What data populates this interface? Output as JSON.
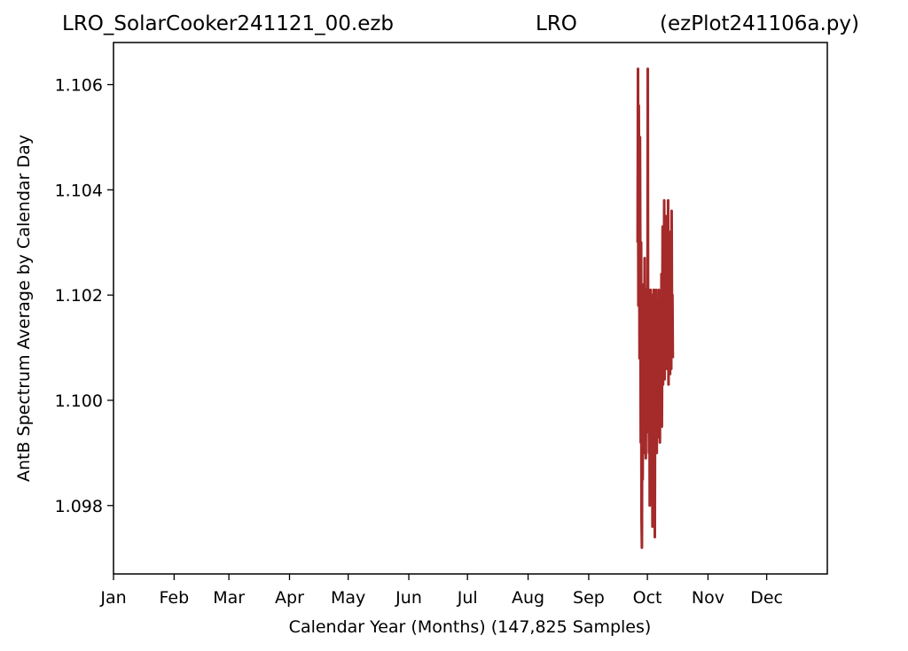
{
  "header": {
    "title_left": "LRO_SolarCooker241121_00.ezb",
    "title_mid": "LRO",
    "title_right": "(ezPlot241106a.py)"
  },
  "chart_data": {
    "type": "line",
    "xlabel": "Calendar Year (Months) (147,825 Samples)",
    "ylabel": "AntB Spectrum Average by Calendar Day",
    "x_ticks": [
      "Jan",
      "Feb",
      "Mar",
      "Apr",
      "May",
      "Jun",
      "Jul",
      "Aug",
      "Sep",
      "Oct",
      "Nov",
      "Dec"
    ],
    "y_ticks": [
      "1.098",
      "1.100",
      "1.102",
      "1.104",
      "1.106"
    ],
    "xlim": [
      1,
      366
    ],
    "ylim": [
      1.0967,
      1.1068
    ],
    "grid": false,
    "colors": {
      "series": "#a52a2a"
    },
    "series": [
      {
        "x": [
          269.0,
          269.2,
          269.4,
          269.6,
          269.8,
          270.0,
          270.2,
          270.4,
          270.6,
          270.8,
          271.0,
          271.2,
          271.4,
          271.6,
          271.8,
          272.0,
          272.2,
          272.4,
          272.6,
          272.8,
          273.0,
          273.2,
          273.4,
          273.6,
          273.8,
          274.0,
          274.2,
          274.4,
          274.6,
          274.8,
          275.0,
          275.2,
          275.4,
          275.6,
          275.8,
          276.0,
          276.2,
          276.4,
          276.6,
          276.8,
          277.0,
          277.2,
          277.4,
          277.6,
          277.8,
          278.0,
          278.2,
          278.4,
          278.6,
          278.8,
          279.0,
          279.2,
          279.4,
          279.6,
          279.8,
          280.0,
          280.2,
          280.4,
          280.6,
          280.8,
          281.0,
          281.2,
          281.4,
          281.6,
          281.8,
          282.0,
          282.2,
          282.4,
          282.6,
          282.8,
          283.0,
          283.2,
          283.4,
          283.6,
          283.8,
          284.0,
          284.2,
          284.4,
          284.6,
          284.8,
          285.0,
          285.2,
          285.4,
          285.6,
          285.8,
          286.0,
          286.2,
          286.4,
          286.6,
          286.8,
          287.0
        ],
        "y": [
          1.103,
          1.1063,
          1.1018,
          1.1056,
          1.1035,
          1.1008,
          1.105,
          1.1024,
          1.0992,
          1.103,
          1.0978,
          1.0972,
          1.1005,
          1.0985,
          1.1015,
          1.1022,
          1.099,
          1.1,
          1.1027,
          1.0996,
          1.1012,
          1.0989,
          1.1021,
          1.0995,
          1.1008,
          1.0994,
          1.1063,
          1.1001,
          1.1021,
          1.099,
          1.1015,
          1.098,
          1.1005,
          1.1021,
          1.0996,
          1.101,
          1.0985,
          1.102,
          1.0976,
          1.101,
          1.0992,
          1.1021,
          1.0986,
          1.1008,
          1.0974,
          1.1012,
          1.0995,
          1.1021,
          1.1,
          1.099,
          1.1016,
          1.0994,
          1.1008,
          1.0993,
          1.1021,
          1.0998,
          1.1006,
          1.0992,
          1.1018,
          1.0996,
          1.1002,
          1.1024,
          1.0995,
          1.1012,
          1.1033,
          1.1003,
          1.1021,
          1.101,
          1.1038,
          1.1004,
          1.1019,
          1.1008,
          1.1035,
          1.1012,
          1.103,
          1.1006,
          1.1026,
          1.101,
          1.1038,
          1.1003,
          1.1022,
          1.1016,
          1.1032,
          1.1005,
          1.1028,
          1.1018,
          1.1006,
          1.1036,
          1.1012,
          1.102,
          1.1008
        ]
      }
    ]
  }
}
